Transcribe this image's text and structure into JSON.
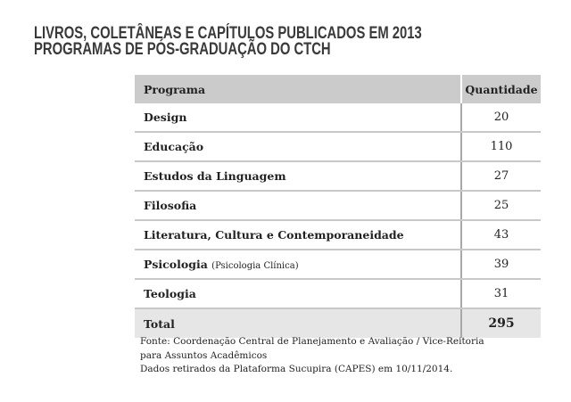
{
  "title": {
    "line1": "LIVROS, COLETÂNEAS E CAPÍTULOS PUBLICADOS EM 2013",
    "line2": "PROGRAMAS DE PÓS-GRADUAÇÃO DO CTCH"
  },
  "table": {
    "headers": [
      "Programa",
      "Quantidade"
    ],
    "rows": [
      {
        "programa": "Design",
        "note": "",
        "quantidade": "20"
      },
      {
        "programa": "Educação",
        "note": "",
        "quantidade": "110"
      },
      {
        "programa": "Estudos da Linguagem",
        "note": "",
        "quantidade": "27"
      },
      {
        "programa": "Filosofia",
        "note": "",
        "quantidade": "25"
      },
      {
        "programa": "Literatura, Cultura e Contemporaneidade",
        "note": "",
        "quantidade": "43"
      },
      {
        "programa": "Psicologia",
        "note": "(Psicologia Clínica)",
        "quantidade": "39"
      },
      {
        "programa": "Teologia",
        "note": "",
        "quantidade": "31"
      }
    ],
    "total": {
      "label": "Total",
      "quantidade": "295"
    }
  },
  "notes": [
    "Fonte: Coordenação Central de Planejamento e Avaliação / Vice-Reitoria",
    "para Assuntos Acadêmicos",
    "Dados retirados da Plataforma Sucupira (CAPES) em 10/11/2014."
  ]
}
